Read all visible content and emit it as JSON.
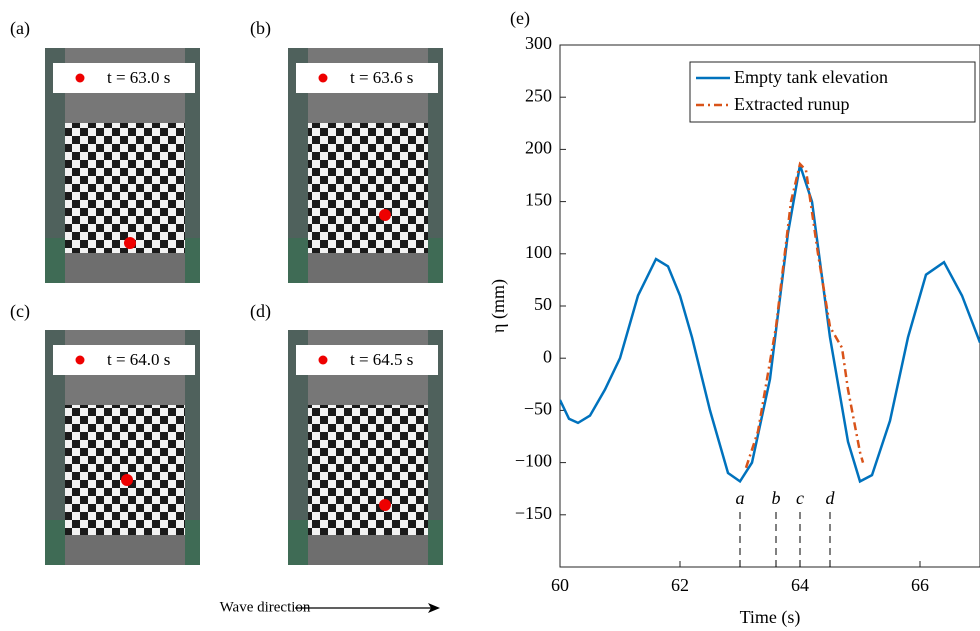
{
  "panels": [
    {
      "label": "(a)",
      "caption": "t = 63.0 s"
    },
    {
      "label": "(b)",
      "caption": "t = 63.6 s"
    },
    {
      "label": "(c)",
      "caption": "t = 64.0 s"
    },
    {
      "label": "(d)",
      "caption": "t = 64.5 s"
    }
  ],
  "wave_direction": "Wave direction",
  "chart_data": {
    "type": "line",
    "panel_label": "(e)",
    "xlabel": "Time (s)",
    "ylabel": "η (mm)",
    "xlim": [
      60,
      67
    ],
    "ylim": [
      -200,
      300
    ],
    "xticks": [
      60,
      62,
      64,
      66
    ],
    "yticks": [
      {
        "value": -150,
        "label": "−150"
      },
      {
        "value": -100,
        "label": "−100"
      },
      {
        "value": -50,
        "label": "−50"
      },
      0,
      50,
      100,
      150,
      200,
      250,
      300
    ],
    "legend": "upper right",
    "series": [
      {
        "name": "Empty tank elevation",
        "color": "#0072bd",
        "style": "solid",
        "x": [
          60,
          60.15,
          60.3,
          60.5,
          60.75,
          61,
          61.3,
          61.6,
          61.8,
          62,
          62.2,
          62.5,
          62.8,
          63,
          63.2,
          63.5,
          63.8,
          64,
          64.2,
          64.5,
          64.8,
          65,
          65.2,
          65.5,
          65.8,
          66.1,
          66.4,
          66.7,
          67
        ],
        "values": [
          -40,
          -58,
          -62,
          -55,
          -30,
          0,
          60,
          95,
          88,
          60,
          20,
          -50,
          -110,
          -118,
          -100,
          -20,
          120,
          185,
          150,
          20,
          -80,
          -118,
          -112,
          -60,
          20,
          80,
          92,
          60,
          15
        ]
      },
      {
        "name": "Extracted runup",
        "color": "#d95319",
        "style": "dashdot",
        "x": [
          63.1,
          63.3,
          63.6,
          63.85,
          64,
          64.1,
          64.3,
          64.5,
          64.7,
          64.8,
          65,
          65.05
        ],
        "values": [
          -105,
          -70,
          30,
          150,
          186,
          180,
          100,
          30,
          10,
          -30,
          -90,
          -100
        ]
      }
    ],
    "markers": [
      {
        "label": "a",
        "x": 63.0
      },
      {
        "label": "b",
        "x": 63.6
      },
      {
        "label": "c",
        "x": 64.0
      },
      {
        "label": "d",
        "x": 64.5
      }
    ]
  }
}
